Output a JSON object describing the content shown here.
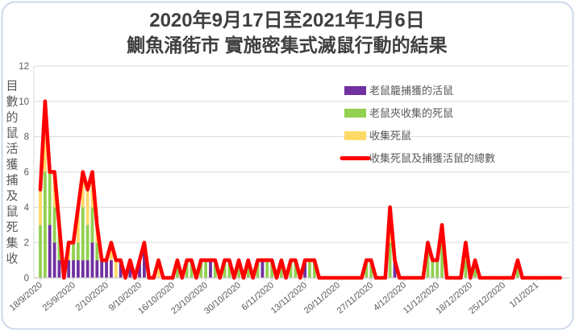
{
  "title": {
    "line1": "2020年9月17日至2021年1月6日",
    "line2": "鰂魚涌街市 實施密集式滅鼠行動的結果"
  },
  "chart_data": {
    "type": "bar",
    "subtype": "stacked-bars-with-total-line",
    "ylabel": "收集死鼠及捕獲活鼠的數目",
    "ylim": [
      0,
      12
    ],
    "yticks": [
      0,
      2,
      4,
      6,
      8,
      10,
      12
    ],
    "grid": "horizontal",
    "legend_position": "inside-top-right",
    "n_days": 111,
    "x_tick_indices": [
      0,
      7,
      14,
      21,
      28,
      35,
      42,
      49,
      56,
      63,
      70,
      77,
      84,
      91,
      98,
      105
    ],
    "x_tick_labels": [
      "18/9/2020",
      "25/9/2020",
      "2/10/2020",
      "9/10/2020",
      "16/10/2020",
      "23/10/2020",
      "30/10/2020",
      "6/11/2020",
      "13/11/2020",
      "20/11/2020",
      "27/11/2020",
      "4/12/2020",
      "11/12/2020",
      "18/12/2020",
      "25/12/2020",
      "1/1/2021"
    ],
    "series": [
      {
        "name": "老鼠籠捕獲的活鼠",
        "kind": "bar",
        "color": "#7030a0",
        "values": [
          0,
          0,
          3,
          2,
          1,
          0,
          1,
          1,
          1,
          1,
          1,
          2,
          1,
          1,
          1,
          1,
          0,
          1,
          0,
          1,
          0,
          1,
          2,
          0,
          0,
          0,
          0,
          0,
          0,
          0,
          0,
          0,
          0,
          0,
          0,
          0,
          1,
          0,
          0,
          0,
          0,
          0,
          0,
          0,
          0,
          0,
          0,
          1,
          0,
          0,
          0,
          0,
          0,
          0,
          0,
          0,
          1,
          0,
          0,
          0,
          0,
          0,
          0,
          0,
          0,
          0,
          0,
          0,
          0,
          0,
          0,
          0,
          0,
          0,
          0,
          1,
          0,
          0,
          0,
          0,
          0,
          0,
          0,
          0,
          0,
          0,
          0,
          0,
          0,
          0,
          0,
          0,
          0,
          0,
          0,
          0,
          0,
          0,
          0,
          0,
          0,
          0,
          0,
          0,
          0,
          0,
          0,
          0,
          0,
          0,
          0
        ]
      },
      {
        "name": "老鼠夾收集的死鼠",
        "kind": "bar",
        "color": "#92d050",
        "values": [
          3,
          6,
          3,
          2,
          2,
          0,
          0,
          1,
          1,
          3,
          2,
          2,
          1,
          0,
          0,
          0,
          0,
          0,
          0,
          0,
          0,
          0,
          0,
          0,
          0,
          0,
          0,
          0,
          0,
          1,
          0,
          1,
          1,
          0,
          1,
          1,
          0,
          1,
          0,
          1,
          1,
          0,
          1,
          0,
          1,
          0,
          1,
          0,
          1,
          1,
          0,
          1,
          0,
          1,
          1,
          0,
          0,
          1,
          1,
          0,
          0,
          0,
          0,
          0,
          0,
          0,
          0,
          0,
          0,
          1,
          1,
          0,
          0,
          0,
          2,
          0,
          0,
          0,
          0,
          0,
          0,
          0,
          2,
          1,
          1,
          2,
          0,
          0,
          0,
          0,
          1,
          0,
          1,
          0,
          0,
          0,
          0,
          0,
          0,
          0,
          0,
          1,
          0,
          0,
          0,
          0,
          0,
          0,
          0,
          0,
          0
        ]
      },
      {
        "name": "收集死鼠",
        "kind": "bar",
        "color": "#ffd966",
        "values": [
          2,
          4,
          0,
          2,
          0,
          0,
          1,
          0,
          2,
          2,
          2,
          2,
          1,
          0,
          0,
          1,
          1,
          0,
          0,
          0,
          0,
          0,
          0,
          0,
          0,
          1,
          0,
          0,
          0,
          0,
          0,
          0,
          0,
          0,
          0,
          0,
          0,
          0,
          0,
          0,
          0,
          0,
          0,
          0,
          0,
          0,
          0,
          0,
          0,
          0,
          0,
          0,
          0,
          0,
          0,
          0,
          0,
          0,
          0,
          0,
          0,
          0,
          0,
          0,
          0,
          0,
          0,
          0,
          0,
          0,
          0,
          0,
          0,
          0,
          2,
          0,
          0,
          0,
          0,
          0,
          0,
          0,
          0,
          0,
          0,
          1,
          0,
          0,
          0,
          0,
          1,
          0,
          0,
          0,
          0,
          0,
          0,
          0,
          0,
          0,
          0,
          0,
          0,
          0,
          0,
          0,
          0,
          0,
          0,
          0,
          0
        ]
      },
      {
        "name": "收集死鼠及捕獲活鼠的總數",
        "kind": "line",
        "color": "#ff0000",
        "values": [
          5,
          10,
          6,
          6,
          3,
          0,
          2,
          2,
          4,
          6,
          5,
          6,
          3,
          1,
          1,
          2,
          1,
          1,
          0,
          1,
          0,
          1,
          2,
          0,
          0,
          1,
          0,
          0,
          0,
          1,
          0,
          1,
          1,
          0,
          1,
          1,
          1,
          1,
          0,
          1,
          1,
          0,
          1,
          0,
          1,
          0,
          1,
          1,
          1,
          1,
          0,
          1,
          0,
          1,
          1,
          0,
          1,
          1,
          1,
          0,
          0,
          0,
          0,
          0,
          0,
          0,
          0,
          0,
          0,
          1,
          1,
          0,
          0,
          0,
          4,
          1,
          0,
          0,
          0,
          0,
          0,
          0,
          2,
          1,
          1,
          3,
          0,
          0,
          0,
          0,
          2,
          0,
          1,
          0,
          0,
          0,
          0,
          0,
          0,
          0,
          0,
          1,
          0,
          0,
          0,
          0,
          0,
          0,
          0,
          0,
          0
        ]
      }
    ],
    "colors": {
      "grid": "#d9d9d9",
      "axis_line": "#bfbfbf",
      "axis_text": "#595959",
      "frame_border": "#ccd9ea"
    }
  }
}
